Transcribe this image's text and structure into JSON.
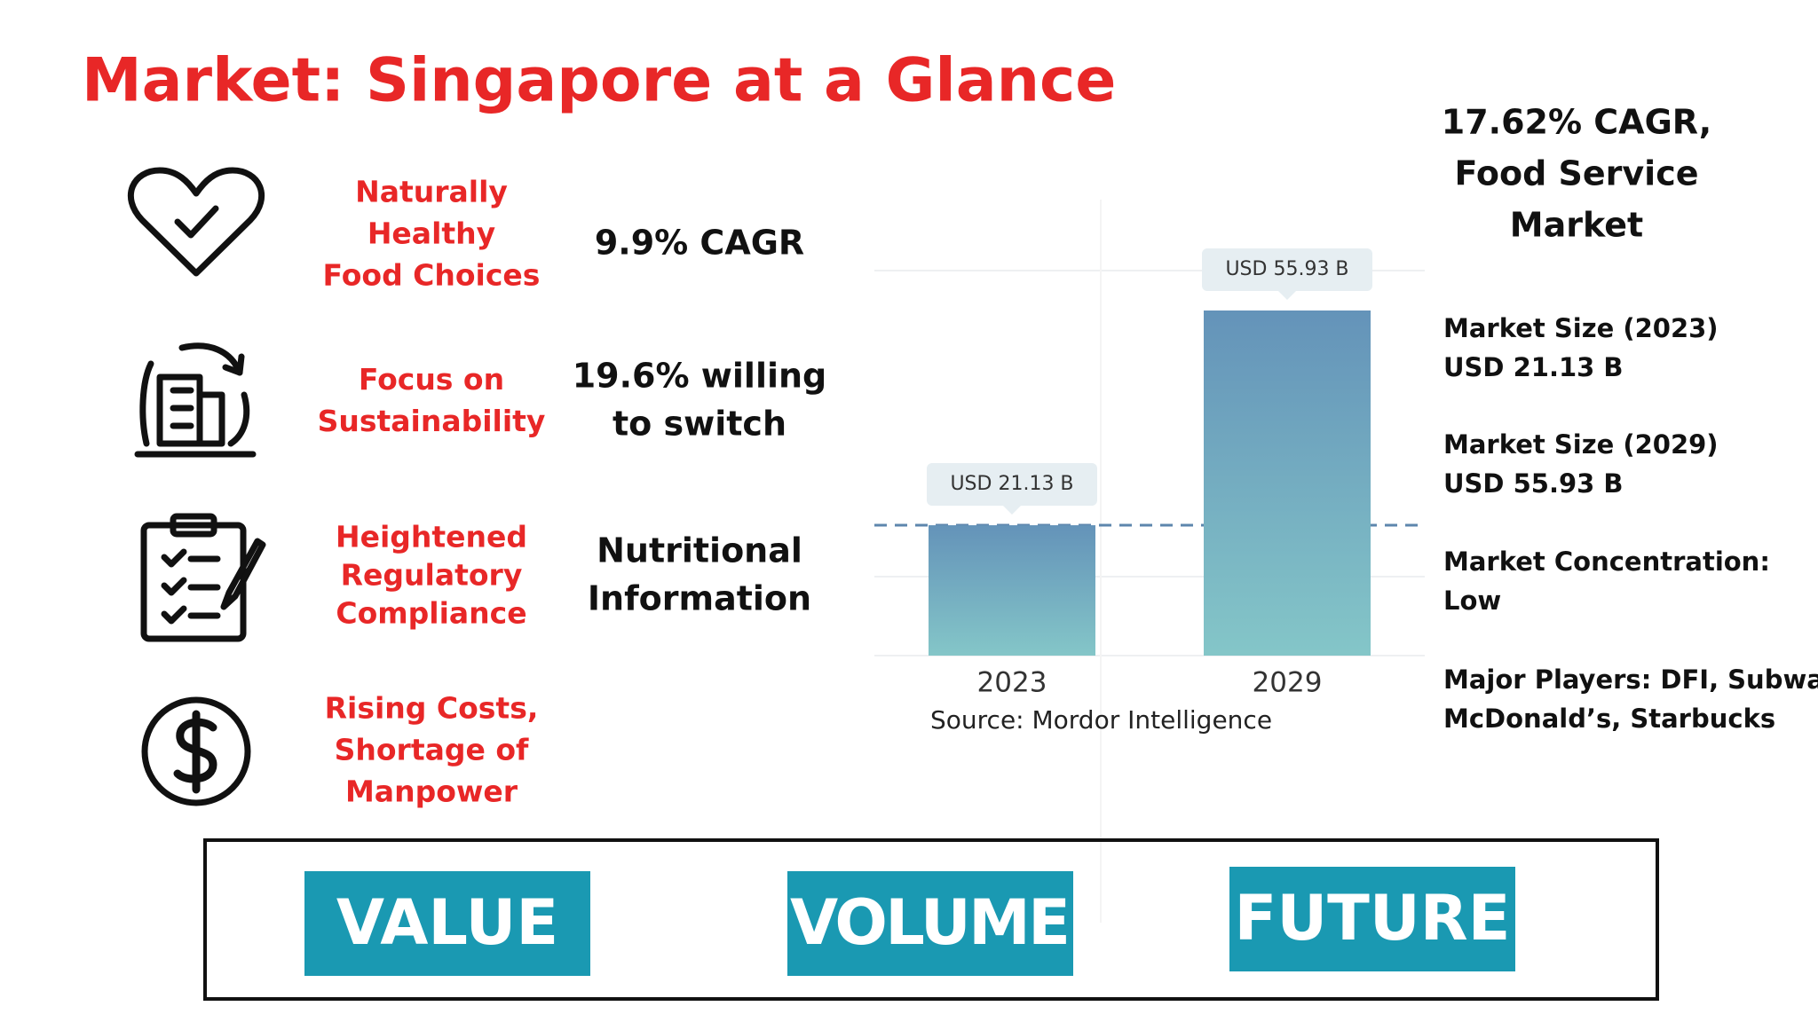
{
  "header": {
    "title": "Market: Singapore at a Glance"
  },
  "features": [
    {
      "label": [
        "Naturally",
        "Healthy",
        "Food Choices"
      ],
      "stat": [
        "9.9% CAGR"
      ]
    },
    {
      "label": [
        "Focus on",
        "Sustainability"
      ],
      "stat": [
        "19.6% willing",
        "to switch"
      ]
    },
    {
      "label": [
        "Heightened",
        "Regulatory",
        "Compliance"
      ],
      "stat": [
        "Nutritional",
        "Information"
      ]
    },
    {
      "label": [
        "Rising Costs,",
        "Shortage of",
        "Manpower"
      ],
      "stat": []
    }
  ],
  "chart_data": {
    "type": "bar",
    "categories": [
      "2023",
      "2029"
    ],
    "values": [
      21.13,
      55.93
    ],
    "value_labels": [
      "USD 21.13 B",
      "USD 55.93 B"
    ],
    "colors": [
      "#6493b9",
      "#84c6c8"
    ],
    "source": "Source: Mordor Intelligence"
  },
  "summary": {
    "headline": [
      "17.62% CAGR,",
      "Food Service",
      "Market"
    ],
    "facts": [
      [
        "Market Size (2023)",
        "USD 21.13 B"
      ],
      [
        "Market Size (2029)",
        "USD 55.93 B"
      ],
      [
        "Market Concentration:",
        "Low"
      ],
      [
        "Major Players: DFI, Subway,",
        "McDonald’s, Starbucks"
      ]
    ]
  },
  "buttons": [
    "VALUE",
    "VOLUME",
    "FUTURE"
  ]
}
